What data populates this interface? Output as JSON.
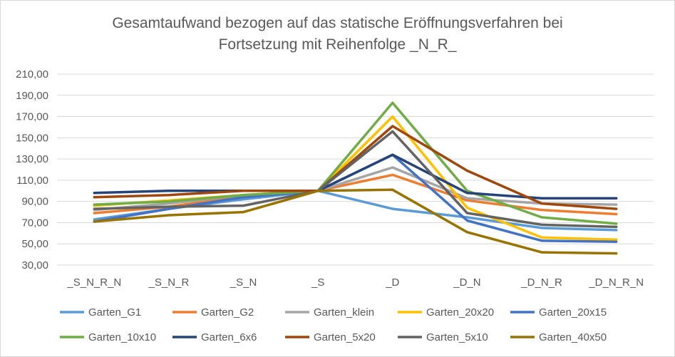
{
  "chart_data": {
    "type": "line",
    "title_lines": [
      "Gesamtaufwand bezogen auf das statische Eröffnungsverfahren bei",
      "Fortsetzung mit Reihenfolge _N_R_"
    ],
    "categories": [
      "_S_N_R_N",
      "_S_N_R",
      "_S_N",
      "_S",
      "_D",
      "_D_N",
      "_D_N_R",
      "_D_N_R_N"
    ],
    "y_ticks": [
      "210,00",
      "190,00",
      "170,00",
      "150,00",
      "130,00",
      "110,00",
      "90,00",
      "70,00",
      "50,00",
      "30,00"
    ],
    "ylim": [
      30,
      210
    ],
    "grid": true,
    "legend_position": "bottom",
    "series": [
      {
        "name": "Garten_G1",
        "color": "#5B9BD5",
        "values": [
          73,
          83,
          92,
          100,
          83,
          75,
          65,
          63
        ]
      },
      {
        "name": "Garten_G2",
        "color": "#ED7D31",
        "values": [
          79,
          85,
          95,
          100,
          115,
          91,
          82,
          78
        ]
      },
      {
        "name": "Garten_klein",
        "color": "#A5A5A5",
        "values": [
          82,
          88,
          96,
          100,
          122,
          93,
          88,
          87
        ]
      },
      {
        "name": "Garten_20x20",
        "color": "#FFC000",
        "values": [
          86,
          91,
          96,
          100,
          170,
          84,
          56,
          54
        ]
      },
      {
        "name": "Garten_20x15",
        "color": "#4472C4",
        "values": [
          71,
          83,
          94,
          100,
          134,
          72,
          53,
          52
        ]
      },
      {
        "name": "Garten_10x10",
        "color": "#70AD47",
        "values": [
          87,
          90,
          96,
          100,
          183,
          100,
          75,
          69
        ]
      },
      {
        "name": "Garten_6x6",
        "color": "#264478",
        "values": [
          98,
          100,
          100,
          100,
          134,
          98,
          93,
          93
        ]
      },
      {
        "name": "Garten_5x20",
        "color": "#9E480E",
        "values": [
          94,
          96,
          100,
          100,
          161,
          119,
          88,
          83
        ]
      },
      {
        "name": "Garten_5x10",
        "color": "#636363",
        "values": [
          83,
          85,
          86,
          100,
          156,
          79,
          68,
          66
        ]
      },
      {
        "name": "Garten_40x50",
        "color": "#997300",
        "values": [
          71,
          77,
          80,
          100,
          101,
          61,
          42,
          41
        ]
      }
    ]
  }
}
